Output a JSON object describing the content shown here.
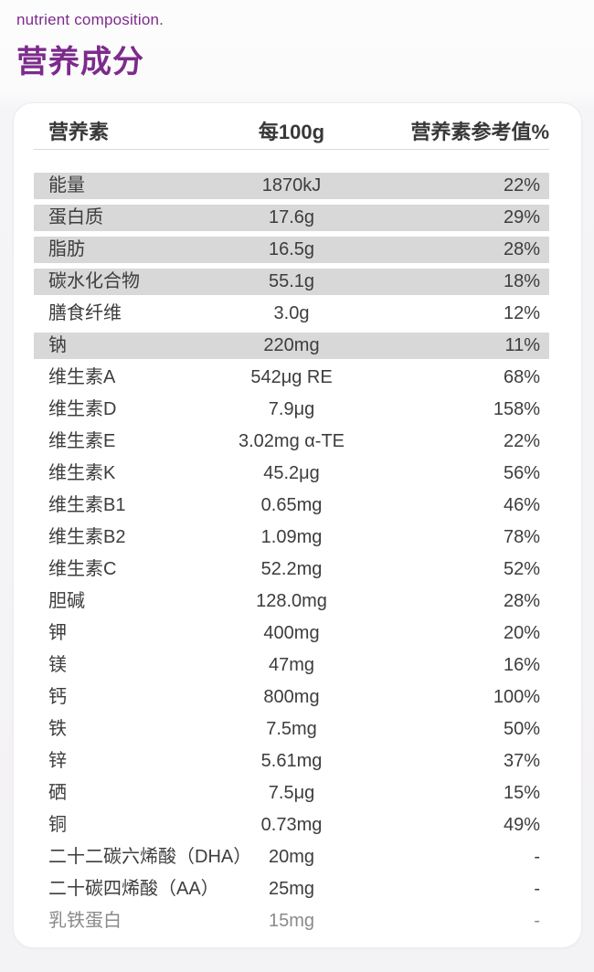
{
  "header": {
    "subtitle": "nutrient composition.",
    "title": "营养成分"
  },
  "colors": {
    "accent_purple": "#7c2b8b",
    "row_shade": "#d8d8d8",
    "text_dark": "#3d3d3d",
    "text_muted": "#8a8a8a",
    "card_bg": "#ffffff",
    "page_bg": "#f4f3f5"
  },
  "table": {
    "headers": {
      "nutrient": "营养素",
      "per_100g": "每100g",
      "nrv_percent": "营养素参考值%"
    },
    "rows": [
      {
        "name": "能量",
        "amount": "1870kJ",
        "nrv": "22%",
        "shaded": true,
        "muted": false
      },
      {
        "name": "蛋白质",
        "amount": "17.6g",
        "nrv": "29%",
        "shaded": true,
        "muted": false
      },
      {
        "name": "脂肪",
        "amount": "16.5g",
        "nrv": "28%",
        "shaded": true,
        "muted": false
      },
      {
        "name": "碳水化合物",
        "amount": "55.1g",
        "nrv": "18%",
        "shaded": true,
        "muted": false
      },
      {
        "name": "膳食纤维",
        "amount": "3.0g",
        "nrv": "12%",
        "shaded": false,
        "muted": false
      },
      {
        "name": "钠",
        "amount": "220mg",
        "nrv": "11%",
        "shaded": true,
        "muted": false
      },
      {
        "name": "维生素A",
        "amount": "542μg RE",
        "nrv": "68%",
        "shaded": false,
        "muted": false
      },
      {
        "name": "维生素D",
        "amount": "7.9μg",
        "nrv": "158%",
        "shaded": false,
        "muted": false
      },
      {
        "name": "维生素E",
        "amount": "3.02mg α-TE",
        "nrv": "22%",
        "shaded": false,
        "muted": false
      },
      {
        "name": "维生素K",
        "amount": "45.2μg",
        "nrv": "56%",
        "shaded": false,
        "muted": false
      },
      {
        "name": "维生素B1",
        "amount": "0.65mg",
        "nrv": "46%",
        "shaded": false,
        "muted": false
      },
      {
        "name": "维生素B2",
        "amount": "1.09mg",
        "nrv": "78%",
        "shaded": false,
        "muted": false
      },
      {
        "name": "维生素C",
        "amount": "52.2mg",
        "nrv": "52%",
        "shaded": false,
        "muted": false
      },
      {
        "name": "胆碱",
        "amount": "128.0mg",
        "nrv": "28%",
        "shaded": false,
        "muted": false
      },
      {
        "name": "钾",
        "amount": "400mg",
        "nrv": "20%",
        "shaded": false,
        "muted": false
      },
      {
        "name": "镁",
        "amount": "47mg",
        "nrv": "16%",
        "shaded": false,
        "muted": false
      },
      {
        "name": "钙",
        "amount": "800mg",
        "nrv": "100%",
        "shaded": false,
        "muted": false
      },
      {
        "name": "铁",
        "amount": "7.5mg",
        "nrv": "50%",
        "shaded": false,
        "muted": false
      },
      {
        "name": "锌",
        "amount": "5.61mg",
        "nrv": "37%",
        "shaded": false,
        "muted": false
      },
      {
        "name": "硒",
        "amount": "7.5μg",
        "nrv": "15%",
        "shaded": false,
        "muted": false
      },
      {
        "name": "铜",
        "amount": "0.73mg",
        "nrv": "49%",
        "shaded": false,
        "muted": false
      },
      {
        "name": "二十二碳六烯酸（DHA）",
        "amount": "20mg",
        "nrv": "-",
        "shaded": false,
        "muted": false
      },
      {
        "name": "二十碳四烯酸（AA）",
        "amount": "25mg",
        "nrv": "-",
        "shaded": false,
        "muted": false
      },
      {
        "name": "乳铁蛋白",
        "amount": "15mg",
        "nrv": "-",
        "shaded": false,
        "muted": true
      }
    ]
  }
}
